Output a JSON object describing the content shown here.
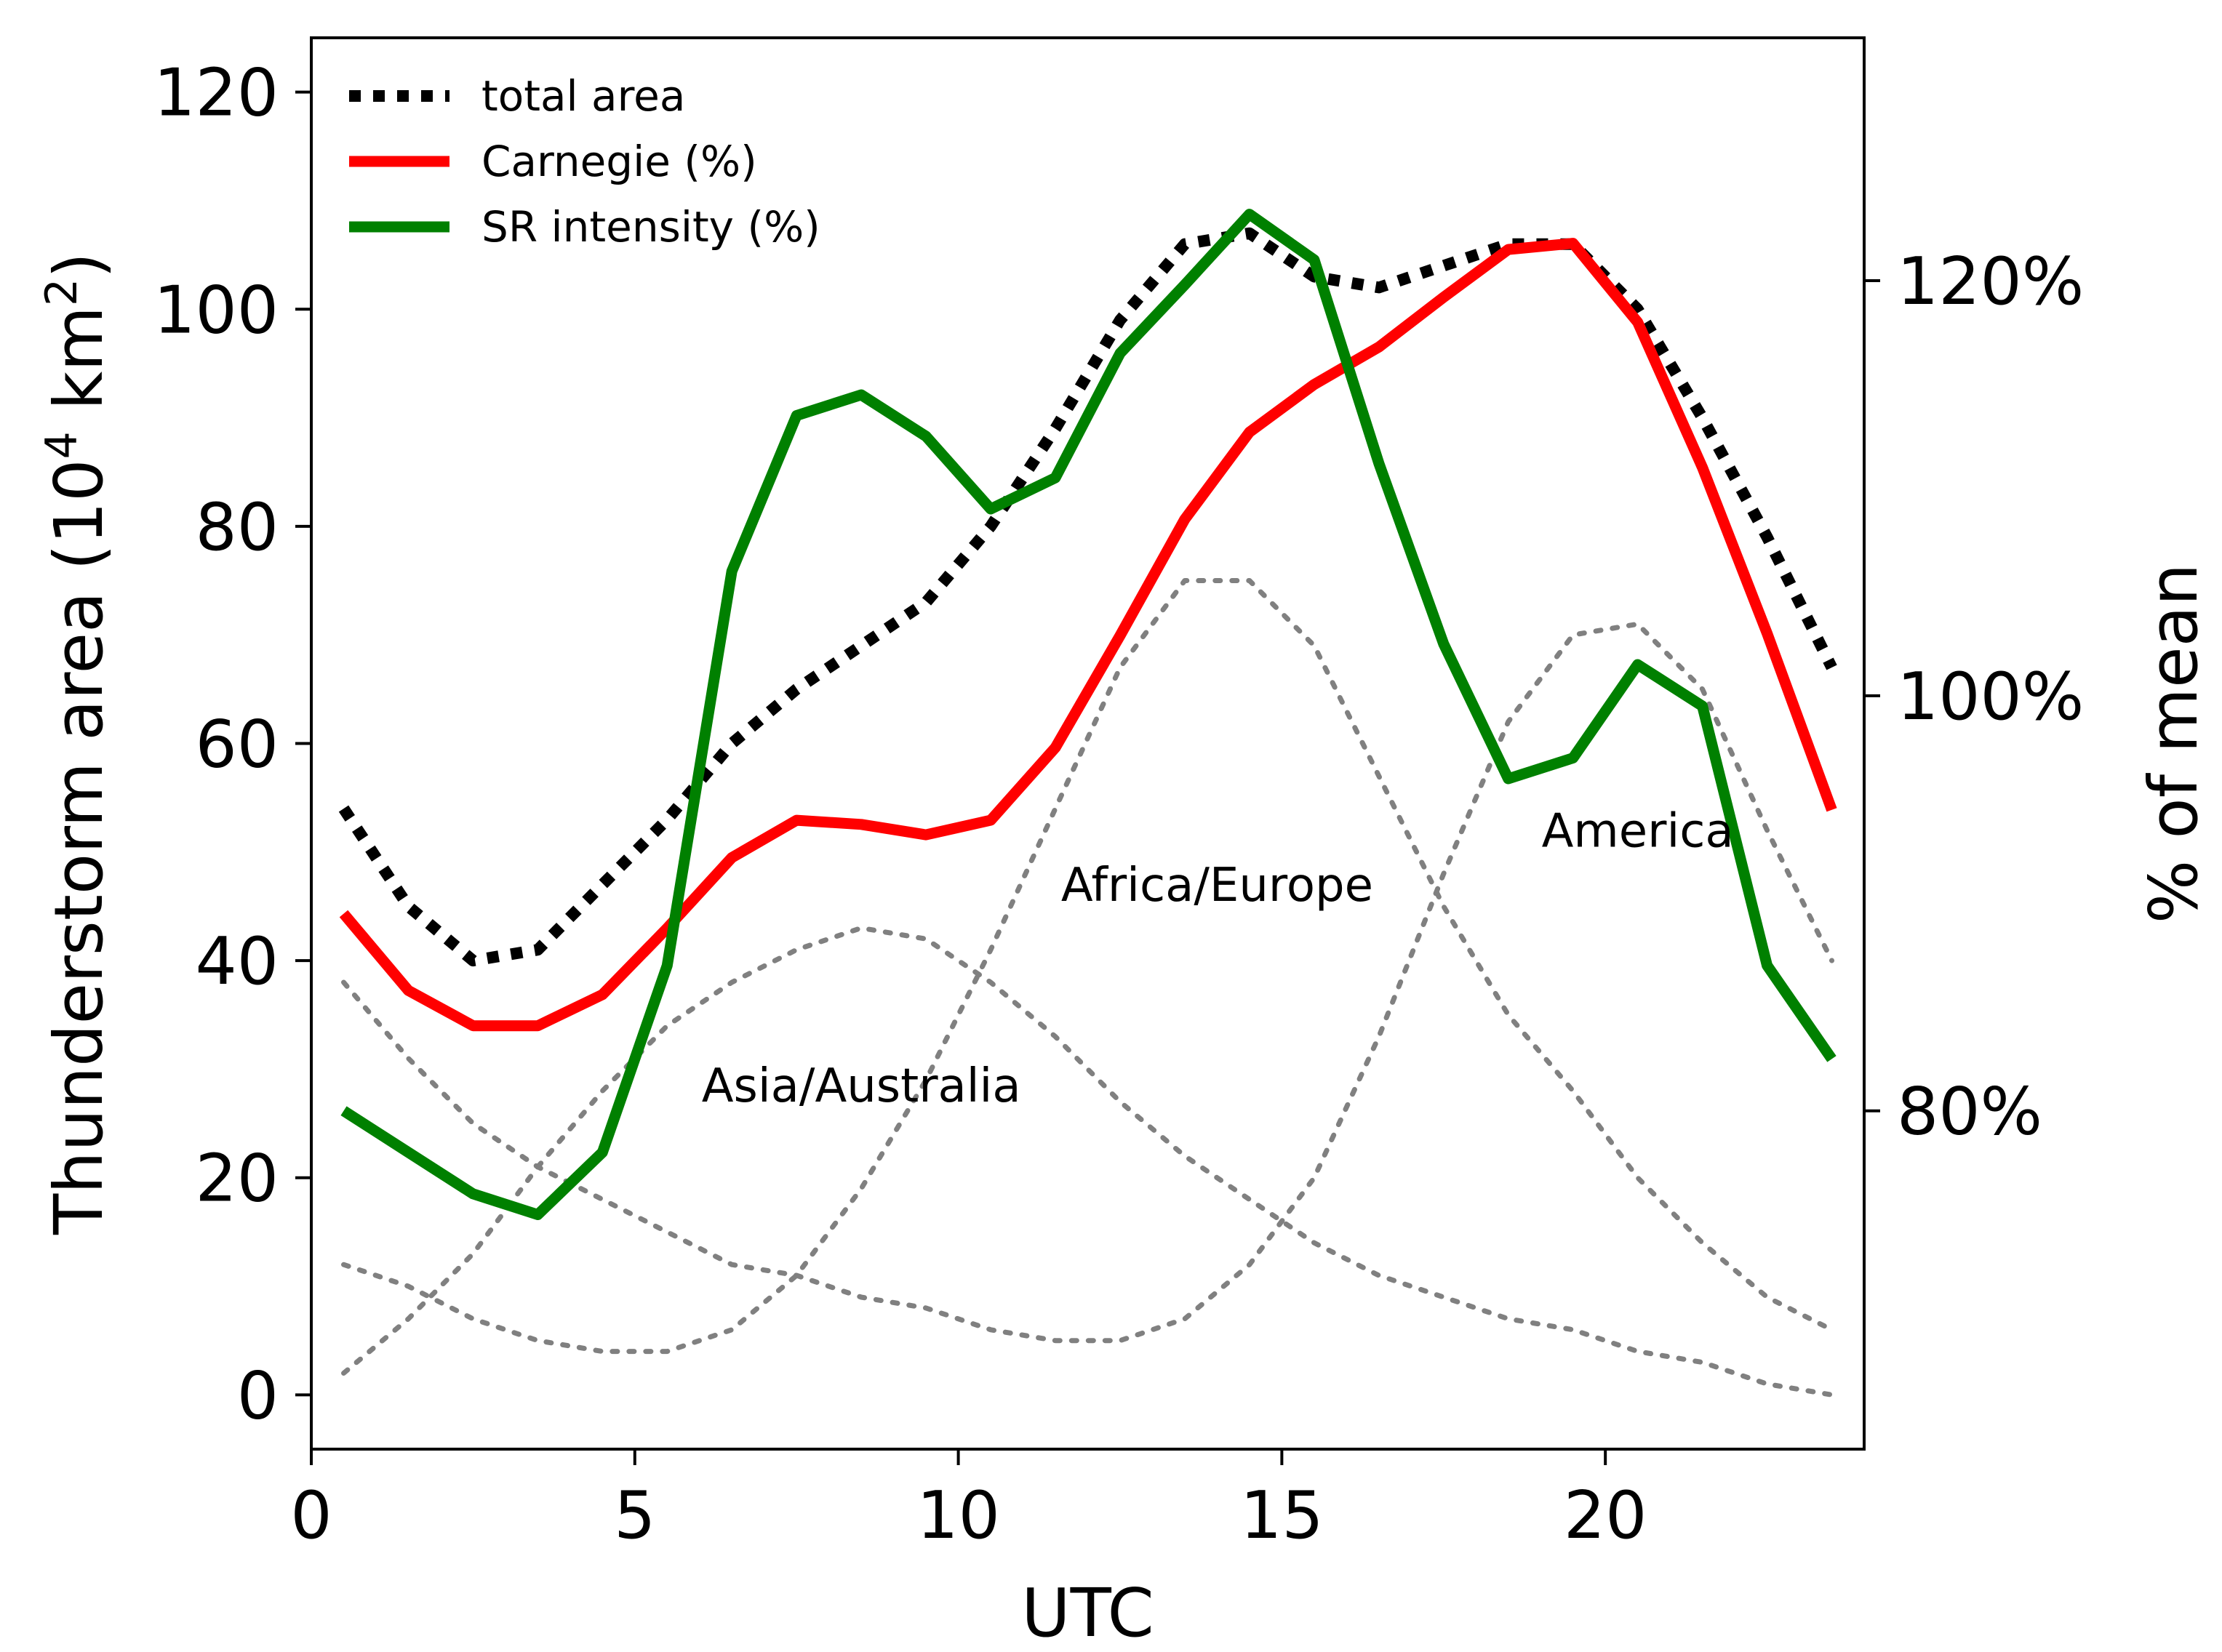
{
  "chart_data": {
    "type": "line",
    "xlabel": "UTC",
    "ylabel_parts": {
      "prefix": "Thunderstorm area (10",
      "sup1": "4",
      "mid": " km",
      "sup2": "2",
      "suffix": ")"
    },
    "y2label": "% of mean",
    "xlim": [
      0,
      24
    ],
    "ylim": [
      -5,
      125
    ],
    "y2lim": [
      63.7,
      131.7
    ],
    "xticks": [
      0,
      5,
      10,
      15,
      20
    ],
    "xtick_labels": [
      "0",
      "5",
      "10",
      "15",
      "20"
    ],
    "yticks": [
      0,
      20,
      40,
      60,
      80,
      100,
      120
    ],
    "ytick_labels": [
      "0",
      "20",
      "40",
      "60",
      "80",
      "100",
      "120"
    ],
    "y2ticks": [
      80,
      100,
      120
    ],
    "y2tick_labels": [
      "80%",
      "100%",
      "120%"
    ],
    "legend_position": "top-left",
    "x": [
      0.5,
      1.5,
      2.5,
      3.5,
      4.5,
      5.5,
      6.5,
      7.5,
      8.5,
      9.5,
      10.5,
      11.5,
      12.5,
      13.5,
      14.5,
      15.5,
      16.5,
      17.5,
      18.5,
      19.5,
      20.5,
      21.5,
      22.5,
      23.5
    ],
    "series": [
      {
        "name": "total area",
        "axis": "left",
        "style": "dotted",
        "color": "#000000",
        "values": [
          54,
          45,
          40,
          41,
          47,
          53,
          60,
          65,
          69,
          73,
          80,
          89,
          99,
          106,
          107,
          103,
          102,
          104,
          106,
          106,
          100,
          90,
          79,
          67
        ]
      },
      {
        "name": "Carnegie (%)",
        "axis": "right",
        "style": "solid",
        "color": "#ff0000",
        "values": [
          89.5,
          85.8,
          84.1,
          84.1,
          85.6,
          88.8,
          92.2,
          94.0,
          93.8,
          93.3,
          94.0,
          97.5,
          102.9,
          108.5,
          112.7,
          115.0,
          116.8,
          119.2,
          121.5,
          121.8,
          118.0,
          111.0,
          103.0,
          94.5
        ]
      },
      {
        "name": "SR intensity (%)",
        "axis": "right",
        "style": "solid",
        "color": "#008000",
        "values": [
          80.0,
          78.0,
          76.0,
          75.0,
          78.0,
          87.0,
          106.0,
          113.5,
          114.5,
          112.5,
          109.0,
          110.5,
          116.5,
          119.8,
          123.2,
          121.0,
          111.2,
          102.5,
          96.0,
          97.0,
          101.5,
          99.5,
          87.0,
          82.5
        ]
      },
      {
        "name": "America",
        "axis": "left",
        "style": "dotted",
        "color": "#808080",
        "values": [
          38,
          31,
          25,
          21,
          18,
          15,
          12,
          11,
          9,
          8,
          6,
          5,
          5,
          7,
          12,
          20,
          33,
          48,
          62,
          70,
          71,
          65,
          52,
          40
        ]
      },
      {
        "name": "Asia/Australia",
        "axis": "left",
        "style": "dotted",
        "color": "#808080",
        "values": [
          2,
          7,
          13,
          21,
          28,
          34,
          38,
          41,
          43,
          42,
          38,
          33,
          27,
          22,
          18,
          14,
          11,
          9,
          7,
          6,
          4,
          3,
          1,
          0
        ]
      },
      {
        "name": "Africa/Europe",
        "axis": "left",
        "style": "dotted",
        "color": "#808080",
        "values": [
          12,
          10,
          7,
          5,
          4,
          4,
          6,
          11,
          19,
          29,
          41,
          54,
          67,
          75,
          75,
          69,
          57,
          45,
          35,
          28,
          20,
          14,
          9,
          6
        ]
      }
    ],
    "legend": [
      "total area",
      "Carnegie (%)",
      "SR intensity (%)"
    ],
    "region_labels": [
      {
        "text": "Asia/Australia",
        "x": 8.5,
        "y": 27
      },
      {
        "text": "Africa/Europe",
        "x": 14,
        "y": 45.5
      },
      {
        "text": "America",
        "x": 20.5,
        "y": 50.5
      }
    ]
  }
}
